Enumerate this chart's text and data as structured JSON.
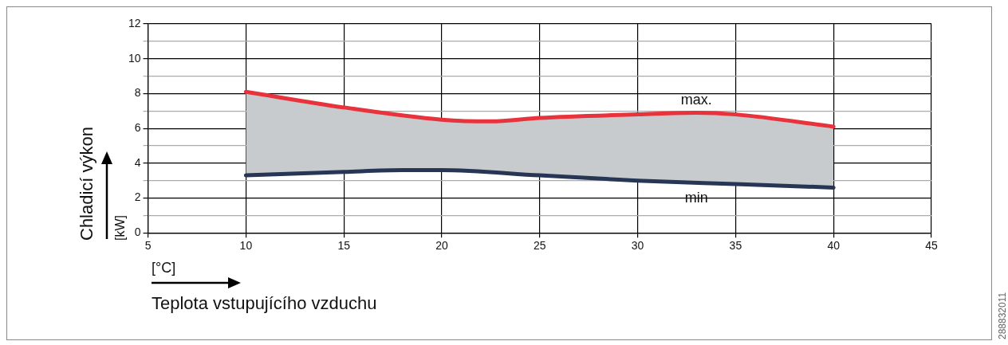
{
  "chart_data": {
    "type": "line",
    "xlabel": "Teplota vstupujícího vzduchu",
    "ylabel": "Chladicí výkon",
    "xlim": [
      5,
      45
    ],
    "xticks": [
      5,
      10,
      15,
      20,
      25,
      30,
      35,
      40,
      45
    ],
    "ylim": [
      0,
      12
    ],
    "yticks": [
      0,
      {
        "value": 1,
        "label": null
      },
      2,
      {
        "value": 3,
        "label": null
      },
      4,
      {
        "value": 5,
        "label": null
      },
      6,
      {
        "value": 7,
        "label": null
      },
      8,
      {
        "value": 9,
        "label": null
      },
      10,
      {
        "value": 11,
        "label": null
      },
      12
    ],
    "grid": true,
    "legend": false,
    "marker": "none",
    "line_style": "solid",
    "series": [
      {
        "name": "max.",
        "color": "#e8323c",
        "x": [
          10,
          15,
          20,
          22.5,
          25,
          30,
          33,
          35,
          40
        ],
        "values": [
          8.1,
          7.2,
          6.5,
          6.4,
          6.6,
          6.8,
          6.9,
          6.8,
          6.1
        ],
        "lower": [
          3.3,
          3.5,
          3.6,
          3.4,
          3.3,
          3.0,
          2.9,
          2.8,
          2.6
        ],
        "upper": [
          8.1,
          7.2,
          6.5,
          6.4,
          6.6,
          6.8,
          6.9,
          6.8,
          6.1
        ]
      },
      {
        "name": "min",
        "color": "#263654",
        "x": [
          10,
          15,
          18,
          20,
          25,
          30,
          35,
          40
        ],
        "values": [
          3.3,
          3.5,
          3.6,
          3.6,
          3.3,
          3.0,
          2.8,
          2.6
        ]
      }
    ],
    "annotations": [
      "[kW]",
      "[°C]",
      "288832011"
    ]
  }
}
